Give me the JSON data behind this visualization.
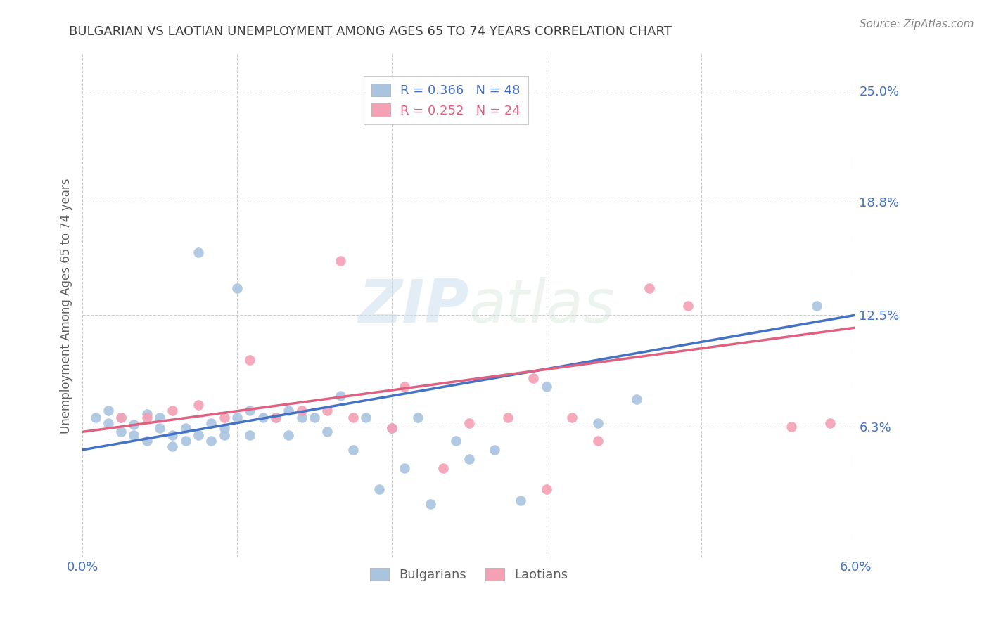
{
  "title": "BULGARIAN VS LAOTIAN UNEMPLOYMENT AMONG AGES 65 TO 74 YEARS CORRELATION CHART",
  "source": "Source: ZipAtlas.com",
  "ylabel": "Unemployment Among Ages 65 to 74 years",
  "xlim": [
    0.0,
    0.06
  ],
  "ylim": [
    -0.01,
    0.27
  ],
  "xticks": [
    0.0,
    0.012,
    0.024,
    0.036,
    0.048,
    0.06
  ],
  "xticklabels": [
    "0.0%",
    "",
    "",
    "",
    "",
    "6.0%"
  ],
  "ytick_labels_right": [
    "25.0%",
    "18.8%",
    "12.5%",
    "6.3%"
  ],
  "ytick_vals_right": [
    0.25,
    0.188,
    0.125,
    0.063
  ],
  "bulgarian_color": "#aac4e0",
  "laotian_color": "#f5a0b4",
  "bulgarian_line_color": "#4472c4",
  "laotian_line_color": "#e06080",
  "grid_color": "#cccccc",
  "background_color": "#ffffff",
  "title_color": "#404040",
  "source_color": "#888888",
  "axis_label_color": "#606060",
  "right_tick_color": "#4472c4",
  "watermark_color": "#d8e8f0",
  "bulgarian_scatter_x": [
    0.001,
    0.002,
    0.002,
    0.003,
    0.003,
    0.004,
    0.004,
    0.005,
    0.005,
    0.006,
    0.006,
    0.007,
    0.007,
    0.008,
    0.008,
    0.009,
    0.009,
    0.01,
    0.01,
    0.011,
    0.011,
    0.012,
    0.012,
    0.013,
    0.013,
    0.014,
    0.015,
    0.016,
    0.016,
    0.017,
    0.018,
    0.019,
    0.02,
    0.021,
    0.022,
    0.023,
    0.024,
    0.025,
    0.026,
    0.027,
    0.029,
    0.03,
    0.032,
    0.034,
    0.036,
    0.04,
    0.043,
    0.057
  ],
  "bulgarian_scatter_y": [
    0.068,
    0.065,
    0.072,
    0.06,
    0.068,
    0.058,
    0.064,
    0.055,
    0.07,
    0.062,
    0.068,
    0.052,
    0.058,
    0.055,
    0.062,
    0.058,
    0.16,
    0.055,
    0.065,
    0.058,
    0.062,
    0.068,
    0.14,
    0.058,
    0.072,
    0.068,
    0.068,
    0.058,
    0.072,
    0.068,
    0.068,
    0.06,
    0.08,
    0.05,
    0.068,
    0.028,
    0.062,
    0.04,
    0.068,
    0.02,
    0.055,
    0.045,
    0.05,
    0.022,
    0.085,
    0.065,
    0.078,
    0.13
  ],
  "laotian_scatter_x": [
    0.003,
    0.005,
    0.007,
    0.009,
    0.011,
    0.013,
    0.015,
    0.017,
    0.019,
    0.021,
    0.024,
    0.028,
    0.03,
    0.033,
    0.035,
    0.036,
    0.038,
    0.04,
    0.044,
    0.047,
    0.055,
    0.058,
    0.02,
    0.025
  ],
  "laotian_scatter_y": [
    0.068,
    0.068,
    0.072,
    0.075,
    0.068,
    0.1,
    0.068,
    0.072,
    0.072,
    0.068,
    0.062,
    0.04,
    0.065,
    0.068,
    0.09,
    0.028,
    0.068,
    0.055,
    0.14,
    0.13,
    0.063,
    0.065,
    0.155,
    0.085
  ],
  "bulgarian_line_x": [
    0.0,
    0.06
  ],
  "bulgarian_line_y": [
    0.05,
    0.125
  ],
  "laotian_line_x": [
    0.0,
    0.06
  ],
  "laotian_line_y": [
    0.06,
    0.118
  ]
}
